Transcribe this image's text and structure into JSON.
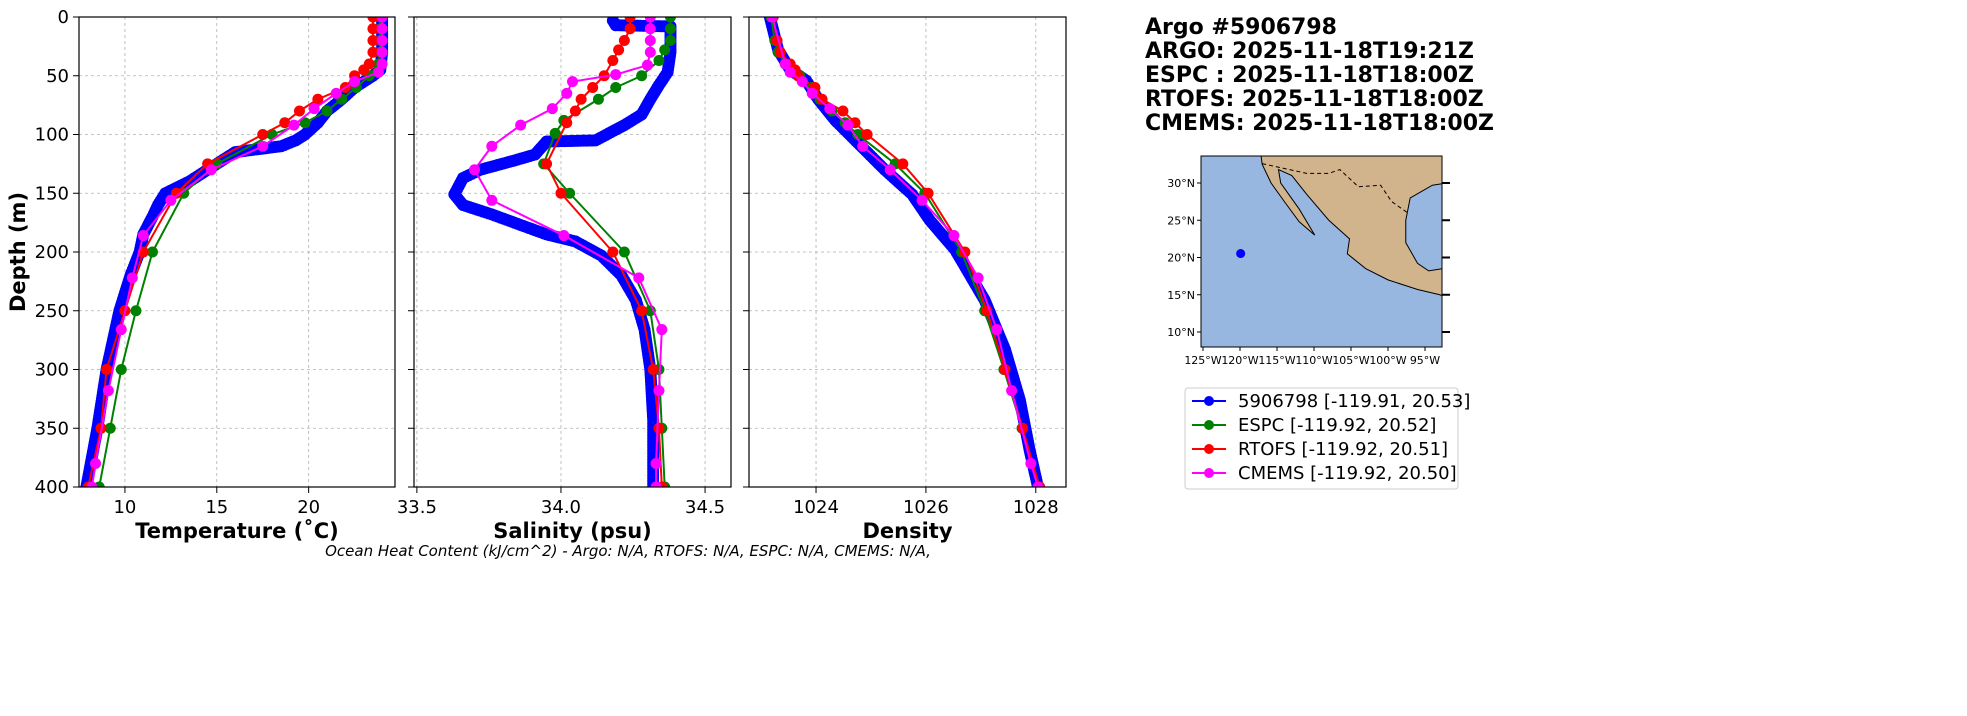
{
  "header": {
    "lines": [
      "Argo #5906798",
      "ARGO: 2025-11-18T19:21Z",
      "ESPC : 2025-11-18T18:00Z",
      "RTOFS: 2025-11-18T18:00Z",
      "CMEMS: 2025-11-18T18:00Z"
    ]
  },
  "footer": "Ocean Heat Content (kJ/cm^2) - Argo: N/A,  RTOFS: N/A,  ESPC: N/A,  CMEMS: N/A,",
  "colors": {
    "argo": "#0000ff",
    "espc": "#008000",
    "rtofs": "#ff0000",
    "cmems": "#ff00ff",
    "land": "#d2b48c",
    "ocean": "#97b6e0"
  },
  "legend": [
    {
      "label": "5906798 [-119.91, 20.53]",
      "color": "#0000ff"
    },
    {
      "label": "ESPC [-119.92, 20.52]",
      "color": "#008000"
    },
    {
      "label": "RTOFS [-119.92, 20.51]",
      "color": "#ff0000"
    },
    {
      "label": "CMEMS [-119.92, 20.50]",
      "color": "#ff00ff"
    }
  ],
  "map_inset": {
    "lon_ticks": [
      "125°W",
      "120°W",
      "115°W",
      "110°W",
      "105°W",
      "100°W",
      "95°W"
    ],
    "lat_ticks": [
      "30°N",
      "25°N",
      "20°N",
      "15°N",
      "10°N"
    ],
    "float_position": [
      -119.91,
      20.53
    ]
  },
  "chart_data": [
    {
      "type": "line",
      "xlabel": "Temperature (˚C)",
      "ylabel": "Depth (m)",
      "xlim": [
        7.5,
        24.7
      ],
      "ylim": [
        400,
        0
      ],
      "grid": true,
      "xticks": [
        10,
        15,
        20
      ],
      "xtick_labels": [
        "10",
        "15",
        "20"
      ],
      "yticks": [
        0,
        50,
        100,
        150,
        200,
        250,
        300,
        350,
        400
      ],
      "ytick_labels": [
        "0",
        "50",
        "100",
        "150",
        "200",
        "250",
        "300",
        "350",
        "400"
      ],
      "series": [
        {
          "name": "5906798",
          "color": "#0000ff",
          "dense": true,
          "depth": [
            0,
            10,
            20,
            30,
            45,
            50,
            60,
            70,
            80,
            90,
            100,
            105,
            110,
            115,
            120,
            130,
            140,
            150,
            160,
            170,
            185,
            200,
            220,
            250,
            300,
            350,
            400
          ],
          "values": [
            24.0,
            24.0,
            24.0,
            24.0,
            23.9,
            23.5,
            22.5,
            21.8,
            21.0,
            20.5,
            19.8,
            19.3,
            18.5,
            16.0,
            15.5,
            14.5,
            13.5,
            12.2,
            11.8,
            11.5,
            11.0,
            10.8,
            10.3,
            9.7,
            9.0,
            8.5,
            7.9
          ]
        },
        {
          "name": "ESPC",
          "color": "#008000",
          "depth": [
            0,
            10,
            20,
            30,
            40,
            50,
            60,
            70,
            80,
            90,
            100,
            125,
            150,
            200,
            250,
            300,
            350,
            400
          ],
          "values": [
            23.9,
            23.9,
            23.9,
            23.9,
            23.8,
            23.3,
            22.6,
            21.8,
            21.0,
            19.8,
            18.0,
            15.0,
            13.2,
            11.5,
            10.6,
            9.8,
            9.2,
            8.6
          ]
        },
        {
          "name": "RTOFS",
          "color": "#ff0000",
          "depth": [
            0,
            10,
            20,
            30,
            40,
            45,
            50,
            60,
            70,
            80,
            90,
            100,
            125,
            150,
            200,
            250,
            300,
            350,
            400
          ],
          "values": [
            23.5,
            23.5,
            23.5,
            23.5,
            23.3,
            23.0,
            22.5,
            22.0,
            20.5,
            19.5,
            18.7,
            17.5,
            14.5,
            12.8,
            11.0,
            10.0,
            9.0,
            8.7,
            8.0
          ]
        },
        {
          "name": "CMEMS",
          "color": "#ff00ff",
          "depth": [
            0,
            10,
            20,
            30,
            40,
            47,
            55,
            65,
            78,
            92,
            110,
            130,
            156,
            186,
            222,
            266,
            318,
            380,
            400
          ],
          "values": [
            24.0,
            24.0,
            24.0,
            24.0,
            24.0,
            23.8,
            22.5,
            21.5,
            20.3,
            19.2,
            17.5,
            14.7,
            12.5,
            11.0,
            10.4,
            9.8,
            9.1,
            8.4,
            8.2
          ]
        }
      ]
    },
    {
      "type": "line",
      "xlabel": "Salinity (psu)",
      "xlim": [
        33.49,
        34.59
      ],
      "ylim": [
        400,
        0
      ],
      "grid": true,
      "xticks": [
        33.5,
        34.0,
        34.5
      ],
      "xtick_labels": [
        "33.5",
        "34.0",
        "34.5"
      ],
      "yticks": [
        0,
        50,
        100,
        150,
        200,
        250,
        300,
        350,
        400
      ],
      "series": [
        {
          "name": "5906798",
          "color": "#0000ff",
          "dense": true,
          "depth": [
            3,
            7,
            8,
            20,
            30,
            47,
            58,
            70,
            83,
            92,
            105,
            106,
            117,
            122,
            130,
            137,
            151,
            160,
            168,
            177,
            185,
            191,
            203,
            220,
            241,
            266,
            300,
            343,
            400
          ],
          "values": [
            34.18,
            34.19,
            34.38,
            34.38,
            34.38,
            34.37,
            34.34,
            34.31,
            34.28,
            34.22,
            34.12,
            33.95,
            33.91,
            33.84,
            33.72,
            33.66,
            33.63,
            33.66,
            33.76,
            33.86,
            33.95,
            34.05,
            34.14,
            34.21,
            34.26,
            34.29,
            34.31,
            34.32,
            34.32
          ]
        },
        {
          "name": "ESPC",
          "color": "#008000",
          "depth": [
            0,
            10,
            20,
            28,
            37,
            50,
            60,
            70,
            88,
            99,
            125,
            150,
            200,
            250,
            300,
            350,
            400
          ],
          "values": [
            34.38,
            34.38,
            34.38,
            34.36,
            34.34,
            34.28,
            34.19,
            34.13,
            34.01,
            33.98,
            33.94,
            34.03,
            34.22,
            34.31,
            34.34,
            34.35,
            34.36
          ]
        },
        {
          "name": "RTOFS",
          "color": "#ff0000",
          "depth": [
            0,
            10,
            20,
            28,
            37,
            50,
            60,
            70,
            80,
            90,
            125,
            150,
            200,
            250,
            300,
            350,
            400
          ],
          "values": [
            34.24,
            34.24,
            34.22,
            34.2,
            34.18,
            34.15,
            34.11,
            34.07,
            34.05,
            34.02,
            33.95,
            34.0,
            34.18,
            34.28,
            34.32,
            34.34,
            34.35
          ]
        },
        {
          "name": "CMEMS",
          "color": "#ff00ff",
          "depth": [
            0,
            10,
            20,
            30,
            41,
            49,
            55,
            65,
            78,
            92,
            110,
            130,
            156,
            186,
            222,
            266,
            318,
            380,
            400
          ],
          "values": [
            34.31,
            34.31,
            34.31,
            34.31,
            34.3,
            34.19,
            34.04,
            34.02,
            33.97,
            33.86,
            33.76,
            33.7,
            33.76,
            34.01,
            34.27,
            34.35,
            34.34,
            34.33,
            34.33
          ]
        }
      ]
    },
    {
      "type": "line",
      "xlabel": "Density",
      "xlim": [
        1022.78,
        1028.55
      ],
      "ylim": [
        400,
        0
      ],
      "grid": true,
      "xticks": [
        1024,
        1026,
        1028
      ],
      "xtick_labels": [
        "1024",
        "1026",
        "1028"
      ],
      "yticks": [
        0,
        50,
        100,
        150,
        200,
        250,
        300,
        350,
        400
      ],
      "series": [
        {
          "name": "5906798",
          "color": "#0000ff",
          "dense": true,
          "depth": [
            0,
            28,
            45,
            54,
            70,
            88,
            109,
            130,
            151,
            173,
            198,
            241,
            283,
            326,
            369,
            400
          ],
          "values": [
            1023.16,
            1023.31,
            1023.53,
            1023.82,
            1024.04,
            1024.35,
            1024.8,
            1025.25,
            1025.75,
            1026.07,
            1026.53,
            1027.07,
            1027.44,
            1027.71,
            1027.89,
            1028.04
          ]
        },
        {
          "name": "ESPC",
          "color": "#008000",
          "depth": [
            0,
            20,
            30,
            40,
            50,
            60,
            70,
            80,
            90,
            100,
            125,
            150,
            200,
            250,
            300,
            350,
            400
          ],
          "values": [
            1023.18,
            1023.25,
            1023.31,
            1023.44,
            1023.71,
            1023.93,
            1024.07,
            1024.29,
            1024.53,
            1024.76,
            1025.44,
            1025.98,
            1026.65,
            1027.07,
            1027.42,
            1027.75,
            1028.07
          ]
        },
        {
          "name": "RTOFS",
          "color": "#ff0000",
          "depth": [
            0,
            20,
            30,
            40,
            45,
            50,
            60,
            70,
            80,
            90,
            100,
            125,
            150,
            200,
            250,
            300,
            350,
            400
          ],
          "values": [
            1023.22,
            1023.29,
            1023.35,
            1023.53,
            1023.62,
            1023.67,
            1023.98,
            1024.11,
            1024.49,
            1024.71,
            1024.93,
            1025.58,
            1026.04,
            1026.71,
            1027.11,
            1027.44,
            1027.76,
            1028.07
          ]
        },
        {
          "name": "CMEMS",
          "color": "#ff00ff",
          "depth": [
            0,
            40,
            47,
            55,
            65,
            78,
            92,
            110,
            130,
            156,
            186,
            222,
            266,
            318,
            380,
            400
          ],
          "values": [
            1023.2,
            1023.44,
            1023.53,
            1023.75,
            1023.93,
            1024.25,
            1024.58,
            1024.85,
            1025.35,
            1025.93,
            1026.51,
            1026.95,
            1027.29,
            1027.56,
            1027.91,
            1028.04
          ]
        }
      ]
    }
  ]
}
